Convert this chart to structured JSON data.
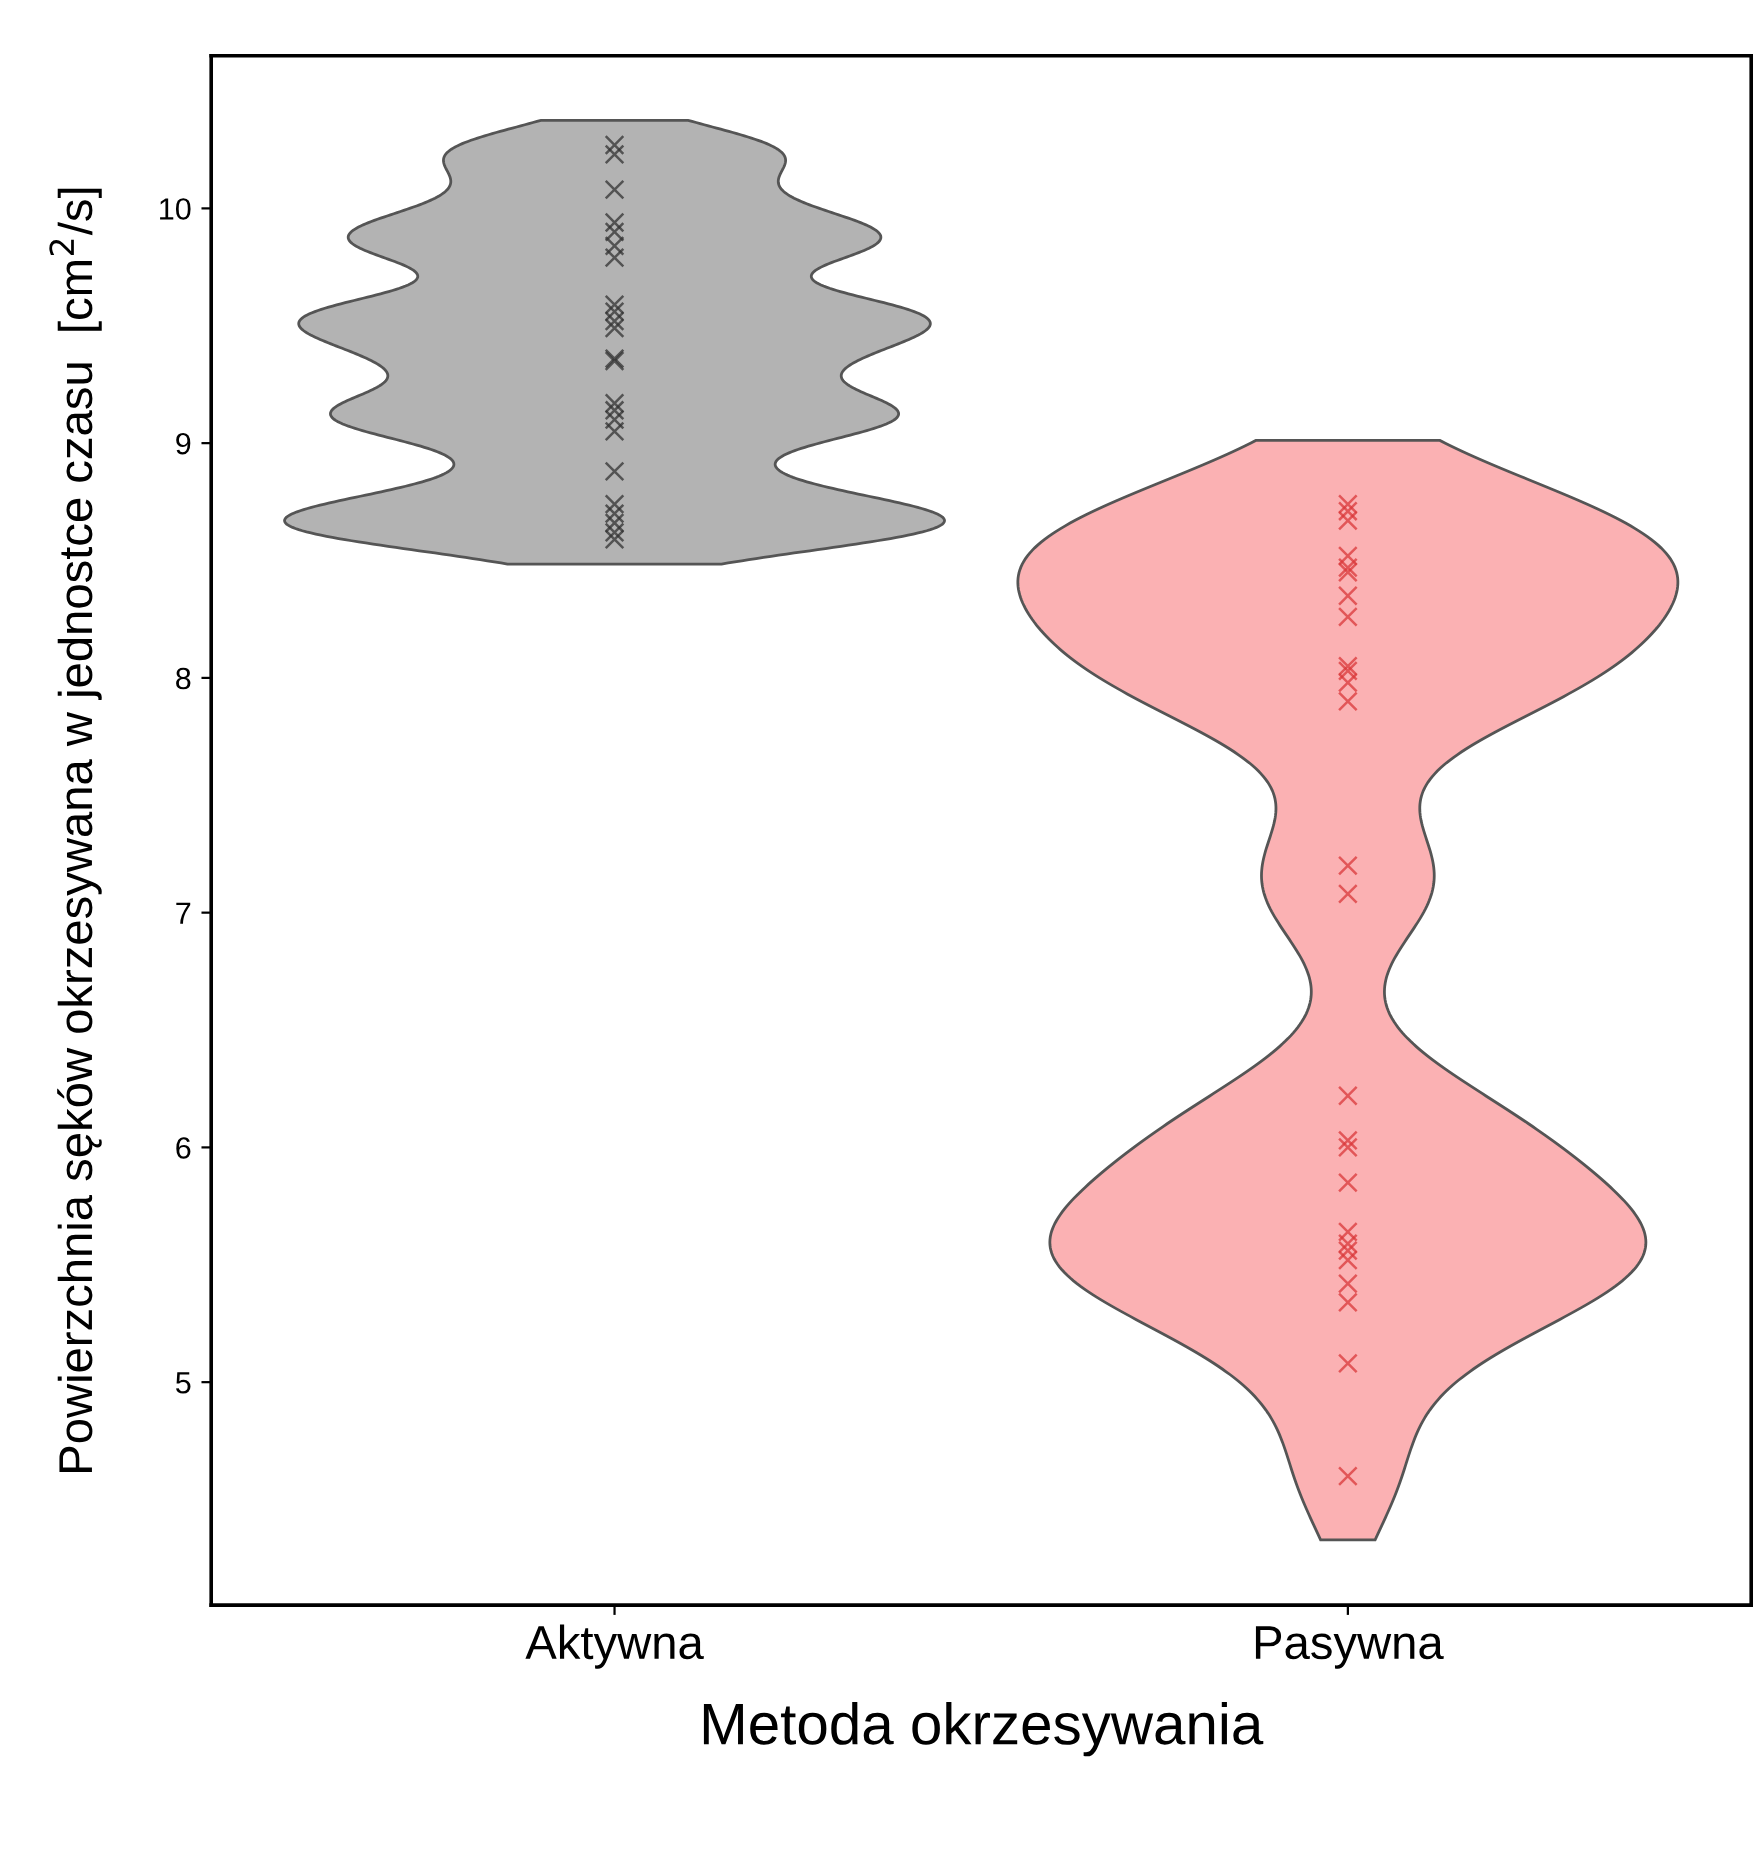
{
  "chart_data": {
    "type": "scatter",
    "xlabel": "Metoda okrzesywania",
    "ylabel": "Powierzchnia sęków okrzesywana w jednostce czasu  [cm$^{2}$/s]",
    "categories": [
      "Aktywna",
      "Pasywna"
    ],
    "colors": [
      "#b3b3b3",
      "#fbb1b3"
    ],
    "marker": "cross",
    "ylim": [
      4.05,
      10.65
    ],
    "yticks": [
      5,
      6,
      7,
      8,
      9,
      10
    ],
    "grid": false,
    "legend": false,
    "series": [
      {
        "color": "#333333",
        "x": [
          "Aktywna",
          "Aktywna",
          "Aktywna",
          "Aktywna",
          "Aktywna",
          "Aktywna",
          "Aktywna",
          "Aktywna",
          "Aktywna",
          "Aktywna",
          "Aktywna",
          "Aktywna",
          "Aktywna",
          "Aktywna",
          "Aktywna",
          "Aktywna",
          "Aktywna",
          "Aktywna",
          "Aktywna",
          "Aktywna",
          "Aktywna",
          "Aktywna",
          "Aktywna"
        ],
        "values": [
          10.27,
          10.23,
          10.08,
          9.94,
          9.9,
          9.84,
          9.79,
          9.59,
          9.56,
          9.52,
          9.49,
          9.35,
          9.36,
          9.17,
          9.14,
          9.1,
          9.05,
          8.88,
          8.74,
          8.7,
          8.66,
          8.62,
          8.59
        ]
      },
      {
        "color": "#d9383a",
        "x": [
          "Pasywna",
          "Pasywna",
          "Pasywna",
          "Pasywna",
          "Pasywna",
          "Pasywna",
          "Pasywna",
          "Pasywna",
          "Pasywna",
          "Pasywna",
          "Pasywna",
          "Pasywna",
          "Pasywna",
          "Pasywna",
          "Pasywna",
          "Pasywna",
          "Pasywna",
          "Pasywna",
          "Pasywna",
          "Pasywna",
          "Pasywna",
          "Pasywna",
          "Pasywna",
          "Pasywna",
          "Pasywna",
          "Pasywna"
        ],
        "values": [
          8.74,
          8.71,
          8.67,
          8.52,
          8.47,
          8.45,
          8.35,
          8.26,
          8.05,
          8.03,
          7.98,
          7.9,
          7.2,
          7.08,
          6.22,
          6.03,
          6.0,
          5.85,
          5.64,
          5.59,
          5.56,
          5.52,
          5.42,
          5.34,
          5.08,
          4.6
        ]
      }
    ]
  }
}
